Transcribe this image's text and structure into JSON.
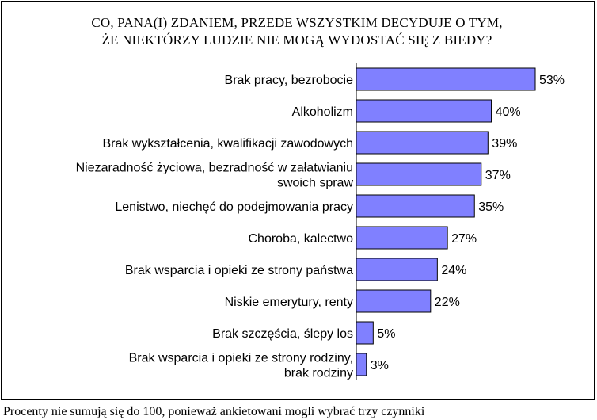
{
  "chart_data": {
    "type": "bar",
    "orientation": "horizontal",
    "title": "CO, PANA(I) ZDANIEM, PRZEDE WSZYSTKIM DECYDUJE  O TYM,\nŻE NIEKTÓRZY LUDZIE NIE MOGĄ WYDOSTAĆ SIĘ  Z BIEDY?",
    "categories": [
      "Brak pracy, bezrobocie",
      "Alkoholizm",
      "Brak wykształcenia, kwalifikacji zawodowych",
      "Niezaradność życiowa, bezradność w załatwianiu swoich spraw",
      "Lenistwo, niechęć do podejmowania pracy",
      "Choroba, kalectwo",
      "Brak wsparcia i opieki ze strony państwa",
      "Niskie emerytury, renty",
      "Brak szczęścia, ślepy los",
      "Brak wsparcia i opieki ze strony rodziny, brak rodziny"
    ],
    "category_lines": [
      [
        "Brak pracy, bezrobocie"
      ],
      [
        "Alkoholizm"
      ],
      [
        "Brak wykształcenia, kwalifikacji zawodowych"
      ],
      [
        "Niezaradność życiowa, bezradność w załatwianiu",
        "swoich spraw"
      ],
      [
        "Lenistwo, niechęć do podejmowania pracy"
      ],
      [
        "Choroba, kalectwo"
      ],
      [
        "Brak wsparcia i opieki ze strony państwa"
      ],
      [
        "Niskie emerytury, renty"
      ],
      [
        "Brak szczęścia, ślepy los"
      ],
      [
        "Brak wsparcia i opieki ze strony rodziny,",
        "brak rodziny"
      ]
    ],
    "values": [
      53,
      40,
      39,
      37,
      35,
      27,
      24,
      22,
      5,
      3
    ],
    "value_labels": [
      "53%",
      "40%",
      "39%",
      "37%",
      "35%",
      "27%",
      "24%",
      "22%",
      "5%",
      "3%"
    ],
    "unit": "%",
    "xlim": [
      0,
      53
    ],
    "grid": false,
    "legend": "none",
    "colors": {
      "bar_fill": "#8080ff",
      "bar_stroke": "#000000"
    }
  },
  "footnote": "Procenty nie sumują się do 100, ponieważ ankietowani mogli wybrać trzy czynniki"
}
